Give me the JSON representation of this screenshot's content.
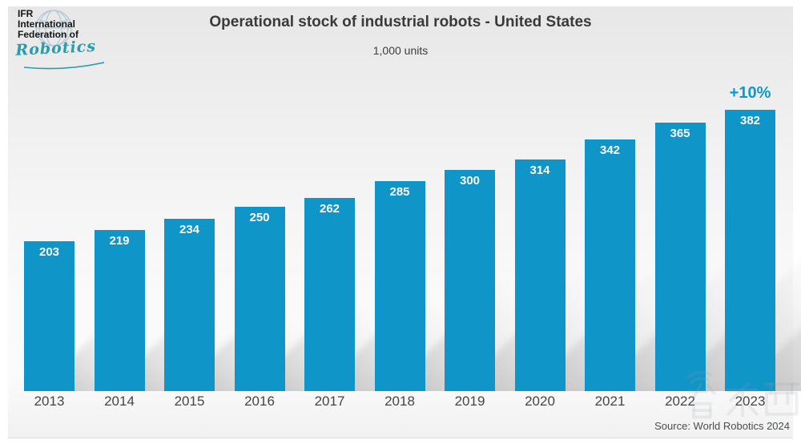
{
  "header": {
    "logo": {
      "line1": "IFR",
      "line2": "International",
      "line3": "Federation of",
      "script": "Robotics"
    },
    "title": "Operational stock of industrial robots - United States",
    "subtitle": "1,000 units"
  },
  "chart_data": {
    "type": "bar",
    "title": "Operational stock of industrial robots - United States",
    "units_label": "1,000 units",
    "categories": [
      "2013",
      "2014",
      "2015",
      "2016",
      "2017",
      "2018",
      "2019",
      "2020",
      "2021",
      "2022",
      "2023"
    ],
    "values": [
      203,
      219,
      234,
      250,
      262,
      285,
      300,
      314,
      342,
      365,
      382
    ],
    "annotation": {
      "label": "+10%",
      "category": "2023"
    },
    "xlabel": "",
    "ylabel": "",
    "ylim": [
      0,
      420
    ],
    "grid": false,
    "legend": "none",
    "value_labels": "inside-top, white bold"
  },
  "colors": {
    "bar": "#1095c8",
    "annotation": "#0d99cf",
    "logo_script_teal": "#2a9cab",
    "globe_stroke": "#b5c9d6",
    "watermark_gray": "#97a0a8"
  },
  "footer": {
    "source": "Source: World Robotics 2024",
    "watermark": "智东西"
  }
}
